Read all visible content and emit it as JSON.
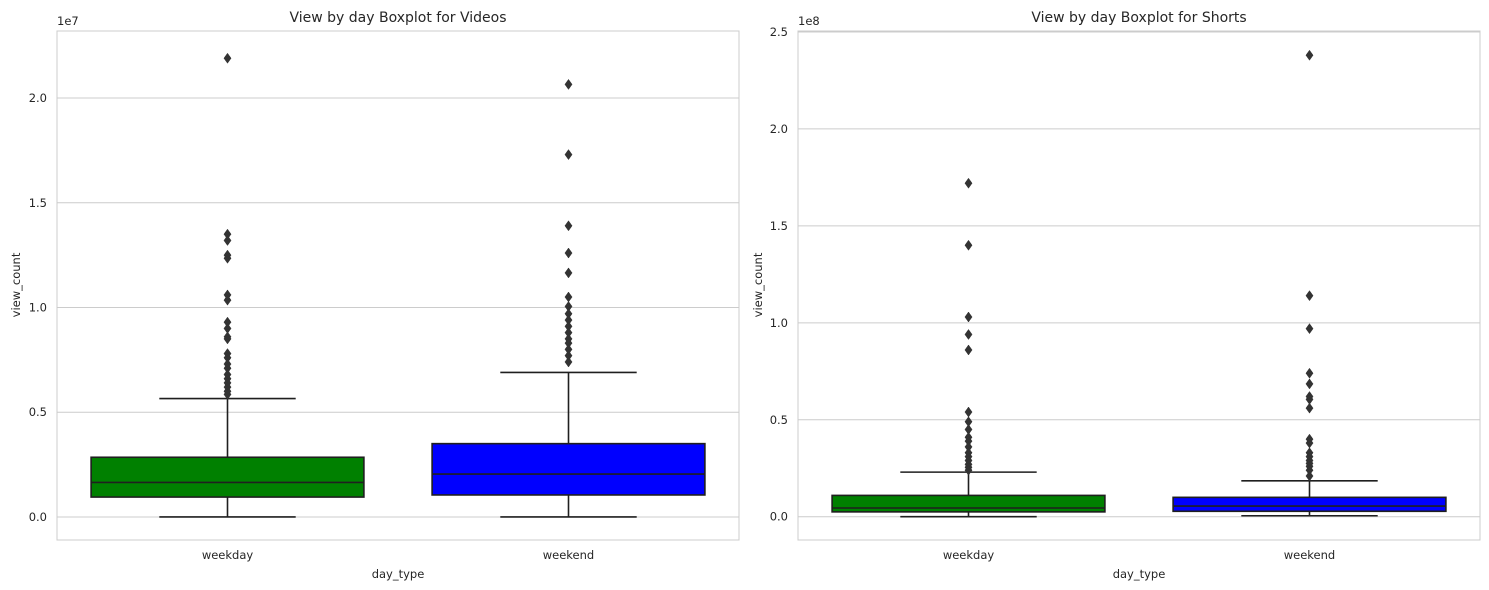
{
  "chart_data": [
    {
      "type": "boxplot",
      "title": "View by day Boxplot for Videos",
      "xlabel": "day_type",
      "ylabel": "view_count",
      "y_offset_label": "1e7",
      "y_scale": 10000000,
      "ylim": [
        -1100000,
        23200000
      ],
      "yticks": [
        0,
        5000000,
        10000000,
        15000000,
        20000000
      ],
      "ytick_labels": [
        "0.0",
        "0.5",
        "1.0",
        "1.5",
        "2.0"
      ],
      "grid": true,
      "categories": [
        "weekday",
        "weekend"
      ],
      "boxes": [
        {
          "category": "weekday",
          "color": "#008000",
          "whisker_low": 0,
          "q1": 950000,
          "median": 1650000,
          "q3": 2850000,
          "whisker_high": 5650000,
          "outliers": [
            21900000,
            13500000,
            13200000,
            12500000,
            12350000,
            10600000,
            10350000,
            9300000,
            9000000,
            8600000,
            8500000,
            7800000,
            7600000,
            7300000,
            7100000,
            6800000,
            6600000,
            6400000,
            6200000,
            6000000,
            5850000
          ]
        },
        {
          "category": "weekend",
          "color": "#0000ff",
          "whisker_low": 0,
          "q1": 1050000,
          "median": 2050000,
          "q3": 3500000,
          "whisker_high": 6900000,
          "outliers": [
            20650000,
            17300000,
            13900000,
            12600000,
            11650000,
            10500000,
            10050000,
            9700000,
            9400000,
            9100000,
            8800000,
            8500000,
            8300000,
            8000000,
            7700000,
            7400000
          ]
        }
      ]
    },
    {
      "type": "boxplot",
      "title": "View by day Boxplot for Shorts",
      "xlabel": "day_type",
      "ylabel": "view_count",
      "y_offset_label": "1e8",
      "y_scale": 100000000,
      "ylim": [
        -12000000,
        250500000
      ],
      "yticks": [
        0,
        50000000,
        100000000,
        150000000,
        200000000,
        250000000
      ],
      "ytick_labels": [
        "0.0",
        "0.5",
        "1.0",
        "1.5",
        "2.0",
        "2.5"
      ],
      "grid": true,
      "categories": [
        "weekday",
        "weekend"
      ],
      "boxes": [
        {
          "category": "weekday",
          "color": "#008000",
          "whisker_low": 0,
          "q1": 2500000,
          "median": 4500000,
          "q3": 11000000,
          "whisker_high": 23000000,
          "outliers": [
            172000000,
            140000000,
            103000000,
            94000000,
            86000000,
            54000000,
            49000000,
            45000000,
            41000000,
            39000000,
            36000000,
            33000000,
            31000000,
            29000000,
            27000000,
            25500000,
            24000000
          ]
        },
        {
          "category": "weekend",
          "color": "#0000ff",
          "whisker_low": 500000,
          "q1": 2800000,
          "median": 5500000,
          "q3": 10000000,
          "whisker_high": 18500000,
          "outliers": [
            238000000,
            114000000,
            97000000,
            74000000,
            68500000,
            62000000,
            60500000,
            56000000,
            40000000,
            38000000,
            33000000,
            31000000,
            29000000,
            27500000,
            26000000,
            24000000,
            21000000
          ]
        }
      ]
    }
  ]
}
